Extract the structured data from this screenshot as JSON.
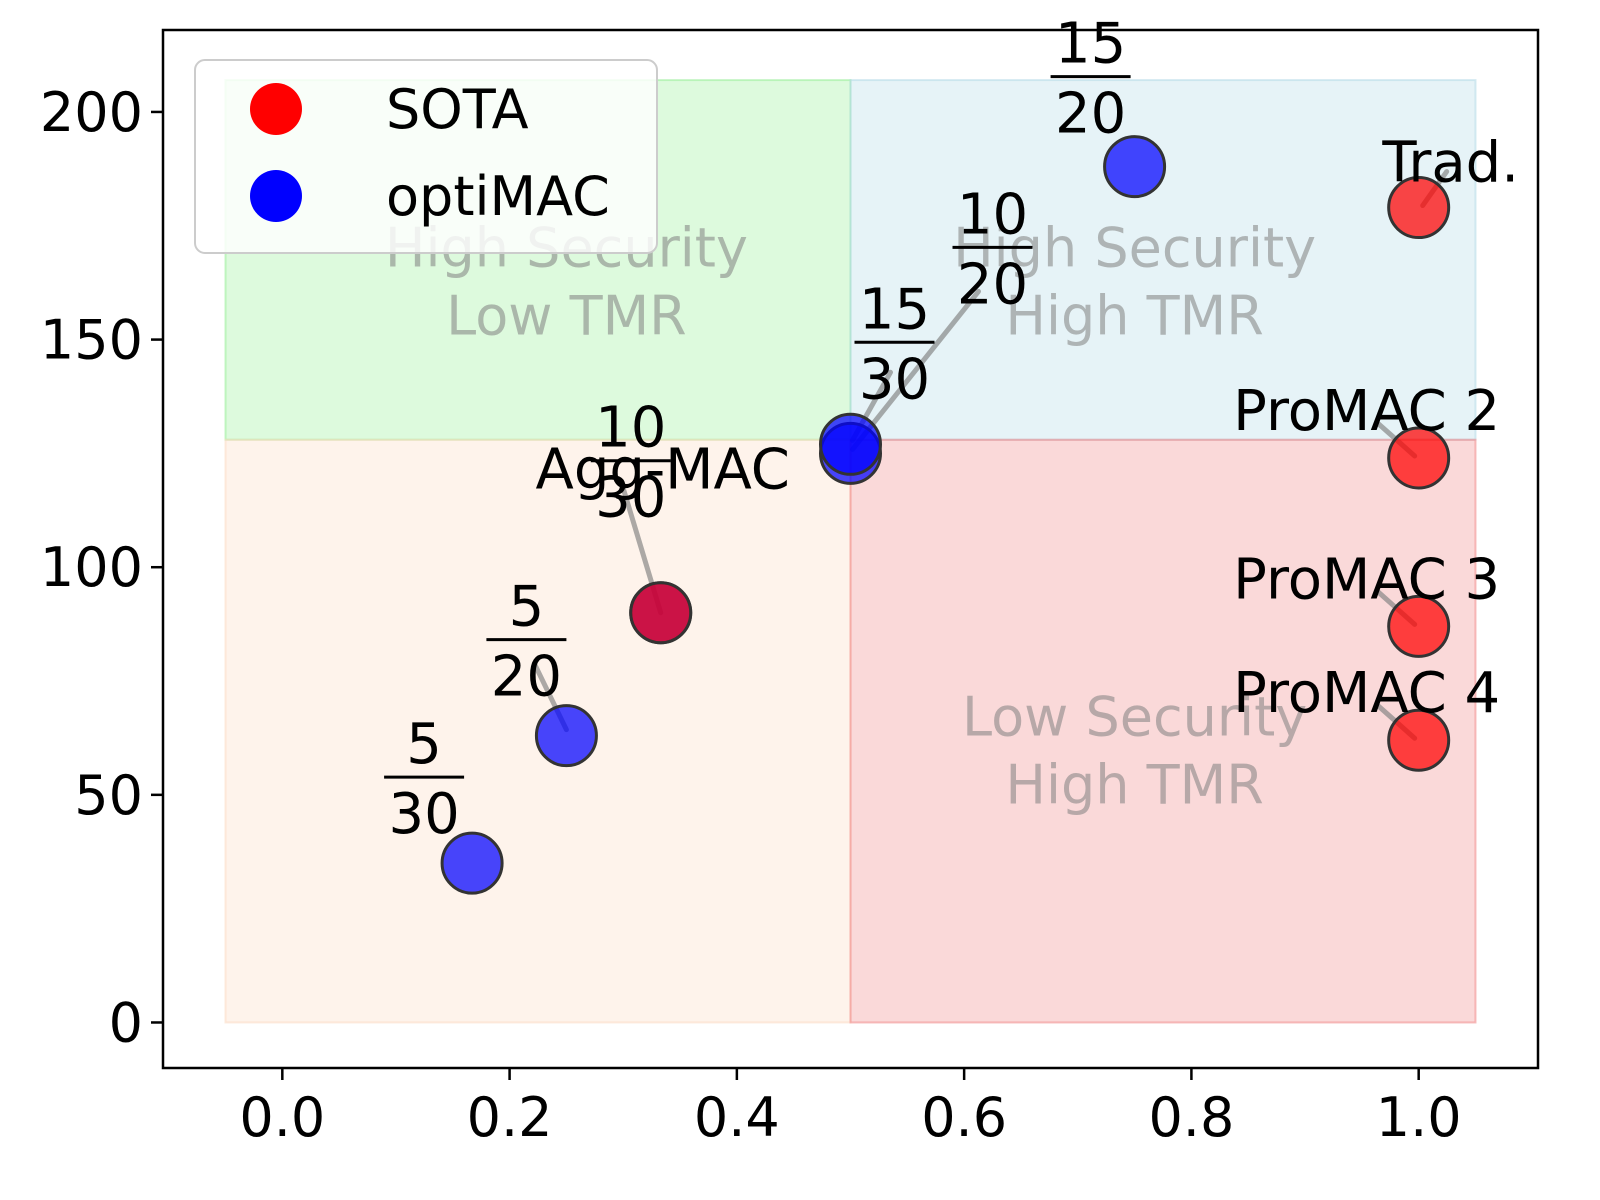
{
  "chart_data": {
    "type": "scatter",
    "title": "",
    "xlabel": "",
    "ylabel": "",
    "xlim": [
      -0.105,
      1.105
    ],
    "ylim": [
      -10,
      218
    ],
    "x_ticks": [
      "0.0",
      "0.2",
      "0.4",
      "0.6",
      "0.8",
      "1.0"
    ],
    "x_tick_values": [
      0.0,
      0.2,
      0.4,
      0.6,
      0.8,
      1.0
    ],
    "y_ticks": [
      "0",
      "50",
      "100",
      "150",
      "200"
    ],
    "y_tick_values": [
      0,
      50,
      100,
      150,
      200
    ],
    "grid": false,
    "legend_position": "top-left",
    "series": [
      {
        "name": "SOTA",
        "color": "#ff0000",
        "points": [
          {
            "label": "Trad.",
            "x": 1.0,
            "y": 179
          },
          {
            "label": "ProMAC 2",
            "x": 1.0,
            "y": 124
          },
          {
            "label": "ProMAC 3",
            "x": 1.0,
            "y": 87
          },
          {
            "label": "ProMAC 4",
            "x": 1.0,
            "y": 62
          },
          {
            "label": "Agg-MAC",
            "x": 0.333,
            "y": 90
          }
        ]
      },
      {
        "name": "optiMAC",
        "color": "#0000ff",
        "points": [
          {
            "label_num": "15",
            "label_den": "20",
            "x": 0.75,
            "y": 188
          },
          {
            "label_num": "10",
            "label_den": "20",
            "x": 0.5,
            "y": 125
          },
          {
            "label_num": "15",
            "label_den": "30",
            "x": 0.5,
            "y": 127
          },
          {
            "label_num": "10",
            "label_den": "30",
            "x": 0.333,
            "y": 90
          },
          {
            "label_num": "5",
            "label_den": "20",
            "x": 0.25,
            "y": 63
          },
          {
            "label_num": "5",
            "label_den": "30",
            "x": 0.167,
            "y": 35
          }
        ]
      }
    ],
    "regions": [
      {
        "lines": [
          "High Security",
          "Low TMR"
        ],
        "x": [
          -0.05,
          0.5
        ],
        "y": [
          128,
          207
        ],
        "color": "#90ee90"
      },
      {
        "lines": [
          "High Security",
          "High TMR"
        ],
        "x": [
          0.5,
          1.05
        ],
        "y": [
          128,
          207
        ],
        "color": "#add8e6"
      },
      {
        "lines": [
          "",
          ""
        ],
        "x": [
          -0.05,
          0.5
        ],
        "y": [
          0,
          128
        ],
        "color": "#fbd7bd"
      },
      {
        "lines": [
          "Low Security",
          "High TMR"
        ],
        "x": [
          0.5,
          1.05
        ],
        "y": [
          0,
          128
        ],
        "color": "#f08080"
      }
    ]
  }
}
